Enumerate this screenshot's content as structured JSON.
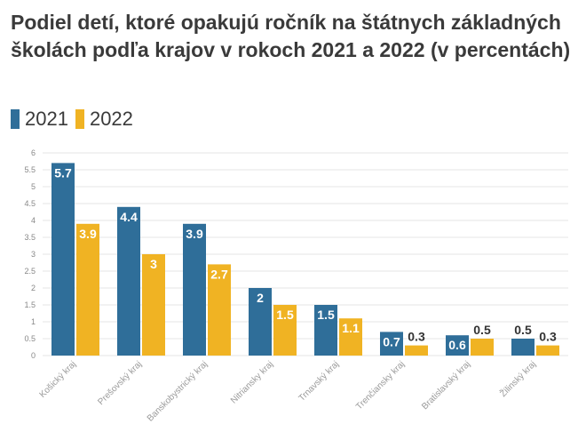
{
  "chart_data": {
    "type": "bar",
    "title": "Podiel detí, ktoré opakujú ročník na štátnych základných školách podľa krajov v rokoch 2021 a 2022 (v percentách)",
    "categories": [
      "Košický kraj",
      "Prešovský kraj",
      "Banskobystrický kraj",
      "Nitriansky kraj",
      "Trnavský kraj",
      "Trenčiansky kraj",
      "Bratislavský kraj",
      "Žilinský kraj"
    ],
    "series": [
      {
        "name": "2021",
        "color": "#2f6e99",
        "values": [
          5.7,
          4.4,
          3.9,
          2,
          1.5,
          0.7,
          0.6,
          0.5
        ]
      },
      {
        "name": "2022",
        "color": "#f0b323",
        "values": [
          3.9,
          3,
          2.7,
          1.5,
          1.1,
          0.3,
          0.5,
          0.3
        ]
      }
    ],
    "yticks": [
      "0",
      "0.5",
      "1",
      "1.5",
      "2",
      "2.5",
      "3",
      "3.5",
      "4",
      "4.5",
      "5",
      "5.5",
      "6"
    ],
    "ylim": [
      0,
      6
    ],
    "grid": true,
    "legend_position": "top-left"
  }
}
